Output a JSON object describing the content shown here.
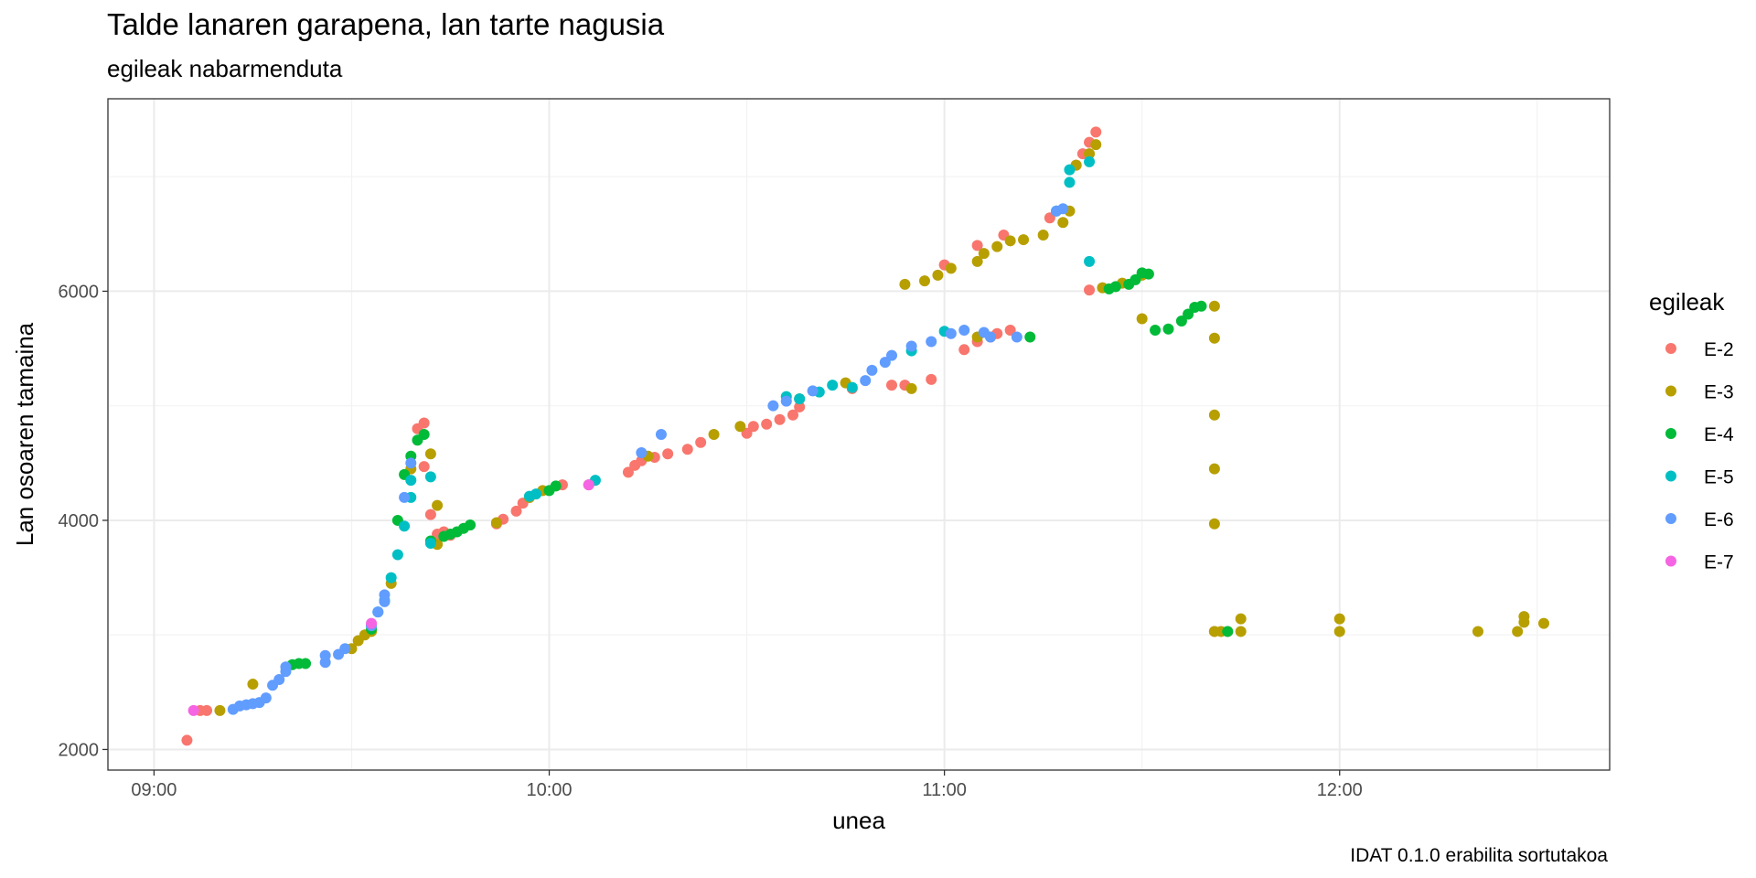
{
  "chart_data": {
    "type": "scatter",
    "title": "Talde lanaren garapena, lan tarte nagusia",
    "subtitle": "egileak nabarmenduta",
    "caption": "IDAT 0.1.0 erabilita sortutakoa",
    "xlabel": "unea",
    "ylabel": "Lan osoaren tamaina",
    "x_ticks": [
      "09:00",
      "10:00",
      "11:00",
      "12:00"
    ],
    "y_ticks": [
      2000,
      4000,
      6000
    ],
    "xlim": [
      "08:53",
      "12:41"
    ],
    "ylim": [
      1820,
      7680
    ],
    "grid": true,
    "legend_title": "egileak",
    "legend_position": "right",
    "series": [
      {
        "name": "E-2",
        "color": "#F8766D",
        "points": [
          [
            "09:05",
            2080
          ],
          [
            "09:07",
            2340
          ],
          [
            "09:08",
            2340
          ],
          [
            "09:40",
            4800
          ],
          [
            "09:41",
            4850
          ],
          [
            "09:41",
            4470
          ],
          [
            "09:42",
            4050
          ],
          [
            "09:43",
            3880
          ],
          [
            "09:44",
            3900
          ],
          [
            "09:45",
            3870
          ],
          [
            "09:52",
            3970
          ],
          [
            "09:53",
            4010
          ],
          [
            "09:55",
            4080
          ],
          [
            "09:56",
            4150
          ],
          [
            "09:57",
            4200
          ],
          [
            "10:02",
            4310
          ],
          [
            "10:06",
            4310
          ],
          [
            "10:12",
            4420
          ],
          [
            "10:13",
            4480
          ],
          [
            "10:14",
            4520
          ],
          [
            "10:16",
            4550
          ],
          [
            "10:18",
            4580
          ],
          [
            "10:21",
            4620
          ],
          [
            "10:23",
            4680
          ],
          [
            "10:30",
            4760
          ],
          [
            "10:31",
            4820
          ],
          [
            "10:33",
            4840
          ],
          [
            "10:35",
            4880
          ],
          [
            "10:37",
            4920
          ],
          [
            "10:38",
            4990
          ],
          [
            "10:46",
            5150
          ],
          [
            "10:52",
            5180
          ],
          [
            "10:54",
            5180
          ],
          [
            "10:58",
            5230
          ],
          [
            "11:03",
            5490
          ],
          [
            "11:05",
            5560
          ],
          [
            "11:07",
            5600
          ],
          [
            "11:08",
            5630
          ],
          [
            "11:10",
            5660
          ],
          [
            "11:00",
            6230
          ],
          [
            "11:05",
            6400
          ],
          [
            "11:09",
            6490
          ],
          [
            "11:16",
            6640
          ],
          [
            "11:20",
            7100
          ],
          [
            "11:21",
            7200
          ],
          [
            "11:22",
            7300
          ],
          [
            "11:23",
            7390
          ],
          [
            "11:22",
            6010
          ],
          [
            "11:41",
            3030
          ],
          [
            "11:43",
            3030
          ]
        ]
      },
      {
        "name": "E-3",
        "color": "#B79F00",
        "points": [
          [
            "09:10",
            2340
          ],
          [
            "09:15",
            2570
          ],
          [
            "09:30",
            2880
          ],
          [
            "09:31",
            2950
          ],
          [
            "09:32",
            3000
          ],
          [
            "09:33",
            3030
          ],
          [
            "09:36",
            3450
          ],
          [
            "09:39",
            4450
          ],
          [
            "09:42",
            4580
          ],
          [
            "09:43",
            4130
          ],
          [
            "09:43",
            3790
          ],
          [
            "09:52",
            3980
          ],
          [
            "09:57",
            4200
          ],
          [
            "09:59",
            4260
          ],
          [
            "10:15",
            4560
          ],
          [
            "10:25",
            4750
          ],
          [
            "10:29",
            4820
          ],
          [
            "10:38",
            5060
          ],
          [
            "10:45",
            5200
          ],
          [
            "10:55",
            5150
          ],
          [
            "11:05",
            5600
          ],
          [
            "10:54",
            6060
          ],
          [
            "10:57",
            6090
          ],
          [
            "10:59",
            6140
          ],
          [
            "11:01",
            6200
          ],
          [
            "11:05",
            6260
          ],
          [
            "11:06",
            6330
          ],
          [
            "11:08",
            6390
          ],
          [
            "11:10",
            6440
          ],
          [
            "11:12",
            6450
          ],
          [
            "11:15",
            6490
          ],
          [
            "11:18",
            6600
          ],
          [
            "11:19",
            6700
          ],
          [
            "11:20",
            7100
          ],
          [
            "11:22",
            7200
          ],
          [
            "11:23",
            7280
          ],
          [
            "11:24",
            6030
          ],
          [
            "11:27",
            6070
          ],
          [
            "11:30",
            6140
          ],
          [
            "11:30",
            5760
          ],
          [
            "11:41",
            5870
          ],
          [
            "11:41",
            5590
          ],
          [
            "11:41",
            4920
          ],
          [
            "11:41",
            4450
          ],
          [
            "11:41",
            3970
          ],
          [
            "11:41",
            3030
          ],
          [
            "11:42",
            3030
          ],
          [
            "11:45",
            3030
          ],
          [
            "11:45",
            3140
          ],
          [
            "12:00",
            3140
          ],
          [
            "12:00",
            3030
          ],
          [
            "12:21",
            3030
          ],
          [
            "12:27",
            3030
          ],
          [
            "12:28",
            3110
          ],
          [
            "12:28",
            3160
          ],
          [
            "12:31",
            3100
          ]
        ]
      },
      {
        "name": "E-4",
        "color": "#00BA38",
        "points": [
          [
            "09:21",
            2740
          ],
          [
            "09:22",
            2750
          ],
          [
            "09:23",
            2750
          ],
          [
            "09:33",
            3050
          ],
          [
            "09:37",
            4000
          ],
          [
            "09:38",
            4400
          ],
          [
            "09:39",
            4560
          ],
          [
            "09:40",
            4700
          ],
          [
            "09:41",
            4750
          ],
          [
            "09:42",
            3820
          ],
          [
            "09:44",
            3860
          ],
          [
            "09:45",
            3880
          ],
          [
            "09:46",
            3900
          ],
          [
            "09:47",
            3930
          ],
          [
            "09:48",
            3960
          ],
          [
            "10:00",
            4260
          ],
          [
            "10:01",
            4300
          ],
          [
            "11:13",
            5600
          ],
          [
            "11:25",
            6020
          ],
          [
            "11:26",
            6040
          ],
          [
            "11:28",
            6060
          ],
          [
            "11:29",
            6100
          ],
          [
            "11:30",
            6160
          ],
          [
            "11:31",
            6150
          ],
          [
            "11:32",
            5660
          ],
          [
            "11:34",
            5670
          ],
          [
            "11:36",
            5740
          ],
          [
            "11:37",
            5800
          ],
          [
            "11:38",
            5860
          ],
          [
            "11:39",
            5870
          ],
          [
            "11:43",
            3030
          ]
        ]
      },
      {
        "name": "E-5",
        "color": "#00BFC4",
        "points": [
          [
            "09:33",
            3080
          ],
          [
            "09:34",
            3200
          ],
          [
            "09:35",
            3300
          ],
          [
            "09:36",
            3500
          ],
          [
            "09:37",
            3700
          ],
          [
            "09:38",
            3950
          ],
          [
            "09:39",
            4200
          ],
          [
            "09:39",
            4350
          ],
          [
            "09:42",
            4380
          ],
          [
            "09:42",
            3800
          ],
          [
            "09:57",
            4210
          ],
          [
            "09:58",
            4230
          ],
          [
            "10:07",
            4350
          ],
          [
            "10:36",
            5080
          ],
          [
            "10:38",
            5060
          ],
          [
            "10:41",
            5120
          ],
          [
            "10:43",
            5180
          ],
          [
            "10:46",
            5160
          ],
          [
            "10:55",
            5480
          ],
          [
            "11:00",
            5650
          ],
          [
            "11:17",
            6700
          ],
          [
            "11:19",
            6950
          ],
          [
            "11:19",
            7060
          ],
          [
            "11:22",
            7130
          ],
          [
            "11:22",
            6260
          ]
        ]
      },
      {
        "name": "E-6",
        "color": "#619CFF",
        "points": [
          [
            "09:12",
            2350
          ],
          [
            "09:13",
            2380
          ],
          [
            "09:14",
            2390
          ],
          [
            "09:15",
            2400
          ],
          [
            "09:16",
            2410
          ],
          [
            "09:17",
            2450
          ],
          [
            "09:18",
            2560
          ],
          [
            "09:19",
            2610
          ],
          [
            "09:20",
            2680
          ],
          [
            "09:20",
            2720
          ],
          [
            "09:26",
            2760
          ],
          [
            "09:26",
            2820
          ],
          [
            "09:28",
            2830
          ],
          [
            "09:29",
            2880
          ],
          [
            "09:33",
            3080
          ],
          [
            "09:34",
            3200
          ],
          [
            "09:35",
            3290
          ],
          [
            "09:35",
            3350
          ],
          [
            "09:38",
            4200
          ],
          [
            "09:39",
            4500
          ],
          [
            "10:14",
            4590
          ],
          [
            "10:17",
            4750
          ],
          [
            "10:34",
            5000
          ],
          [
            "10:36",
            5040
          ],
          [
            "10:40",
            5130
          ],
          [
            "10:48",
            5220
          ],
          [
            "10:49",
            5310
          ],
          [
            "10:51",
            5380
          ],
          [
            "10:52",
            5440
          ],
          [
            "10:55",
            5520
          ],
          [
            "10:58",
            5560
          ],
          [
            "11:01",
            5630
          ],
          [
            "11:03",
            5660
          ],
          [
            "11:06",
            5640
          ],
          [
            "11:07",
            5600
          ],
          [
            "11:11",
            5600
          ],
          [
            "11:17",
            6700
          ],
          [
            "11:18",
            6720
          ]
        ]
      },
      {
        "name": "E-7",
        "color": "#F564E3",
        "points": [
          [
            "09:06",
            2340
          ],
          [
            "09:33",
            3100
          ],
          [
            "10:06",
            4310
          ]
        ]
      }
    ]
  }
}
